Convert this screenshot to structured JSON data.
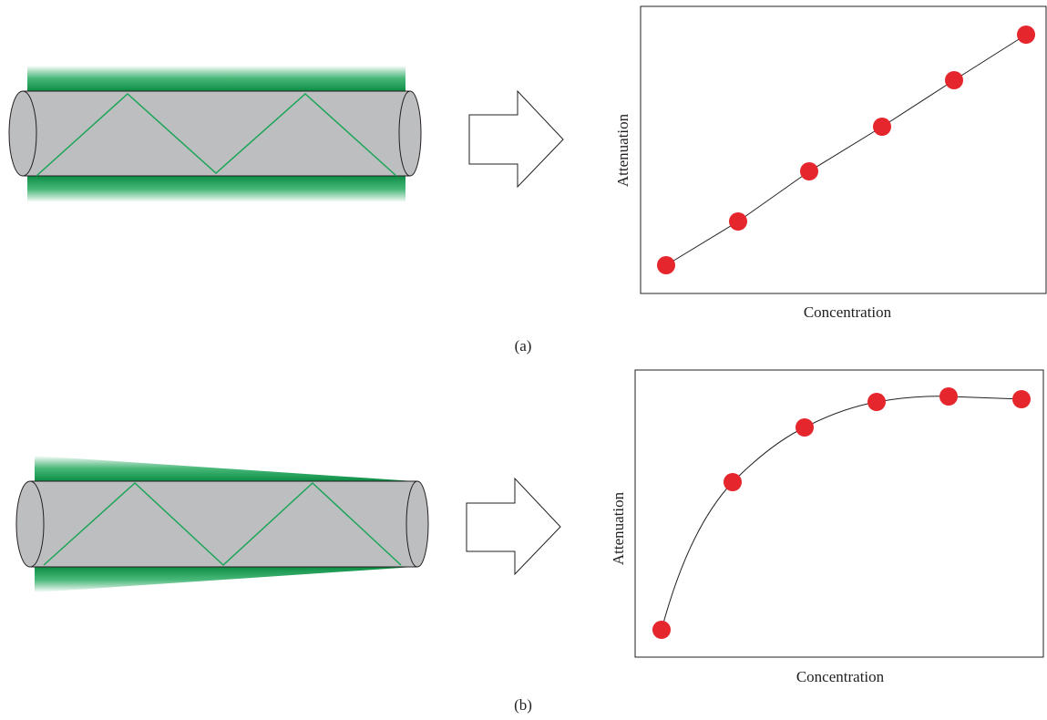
{
  "panels": [
    {
      "label": "(a)",
      "plot": {
        "y_label": "Attenuation",
        "x_label": "Concentration"
      }
    },
    {
      "label": "(b)",
      "plot": {
        "y_label": "Attenuation",
        "x_label": "Concentration"
      }
    }
  ]
}
